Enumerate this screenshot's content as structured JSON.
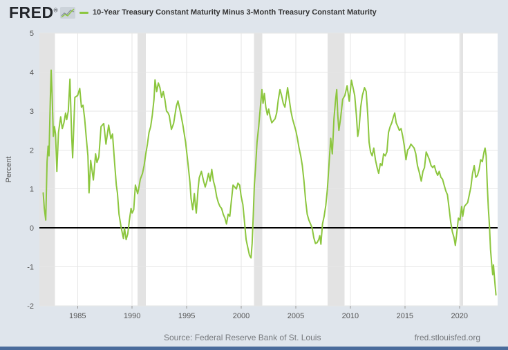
{
  "header": {
    "logo_text": "FRED",
    "registered_mark": "®",
    "legend_label": "10-Year Treasury Constant Maturity Minus 3-Month Treasury Constant Maturity"
  },
  "footer": {
    "source": "Source: Federal Reserve Bank of St. Louis",
    "link": "fred.stlouisfed.org"
  },
  "colors": {
    "background": "#dfe5ec",
    "plot_bg": "#ffffff",
    "grid": "#e6e6e6",
    "recession_band": "#e3e3e3",
    "series": "#8cc63e",
    "zero_line": "#000000",
    "axis_text": "#555555",
    "tick_mark": "#999999",
    "legend_text": "#333333",
    "footer_text": "#76797d",
    "bottom_bar": "#4a6b9b",
    "logo_text": "#23262b"
  },
  "chart_data": {
    "type": "line",
    "title": "10-Year Treasury Constant Maturity Minus 3-Month Treasury Constant Maturity",
    "ylabel": "Percent",
    "xlabel": "",
    "xlim": [
      1981.5,
      2023.5
    ],
    "ylim": [
      -2,
      5
    ],
    "x_ticks": [
      1985,
      1990,
      1995,
      2000,
      2005,
      2010,
      2015,
      2020
    ],
    "y_ticks": [
      -2,
      -1,
      0,
      1,
      2,
      3,
      4,
      5
    ],
    "grid": true,
    "legend_position": "top",
    "zero_line": 0,
    "recessions": [
      [
        1981.5,
        1982.92
      ],
      [
        1990.5,
        1991.25
      ],
      [
        2001.17,
        2001.92
      ],
      [
        2007.92,
        2009.45
      ],
      [
        2020.08,
        2020.33
      ]
    ],
    "series": [
      {
        "name": "10-Year Treasury Constant Maturity Minus 3-Month Treasury Constant Maturity",
        "points": [
          [
            1981.85,
            0.9
          ],
          [
            1981.95,
            0.5
          ],
          [
            1982.08,
            0.2
          ],
          [
            1982.2,
            1.7
          ],
          [
            1982.3,
            2.1
          ],
          [
            1982.38,
            1.85
          ],
          [
            1982.5,
            3.3
          ],
          [
            1982.58,
            4.05
          ],
          [
            1982.68,
            3.3
          ],
          [
            1982.78,
            2.35
          ],
          [
            1982.88,
            2.6
          ],
          [
            1982.98,
            2.4
          ],
          [
            1983.1,
            1.45
          ],
          [
            1983.25,
            2.45
          ],
          [
            1983.45,
            2.85
          ],
          [
            1983.6,
            2.55
          ],
          [
            1983.75,
            2.7
          ],
          [
            1983.9,
            2.95
          ],
          [
            1984.0,
            2.78
          ],
          [
            1984.15,
            3.0
          ],
          [
            1984.3,
            3.82
          ],
          [
            1984.45,
            2.4
          ],
          [
            1984.55,
            1.8
          ],
          [
            1984.75,
            3.35
          ],
          [
            1985.0,
            3.4
          ],
          [
            1985.2,
            3.58
          ],
          [
            1985.35,
            3.1
          ],
          [
            1985.5,
            3.15
          ],
          [
            1985.65,
            2.8
          ],
          [
            1985.8,
            2.3
          ],
          [
            1985.95,
            1.85
          ],
          [
            1986.05,
            0.9
          ],
          [
            1986.2,
            1.73
          ],
          [
            1986.45,
            1.23
          ],
          [
            1986.65,
            1.9
          ],
          [
            1986.78,
            1.68
          ],
          [
            1986.95,
            1.82
          ],
          [
            1987.15,
            2.6
          ],
          [
            1987.4,
            2.68
          ],
          [
            1987.6,
            2.15
          ],
          [
            1987.85,
            2.64
          ],
          [
            1988.05,
            2.29
          ],
          [
            1988.2,
            2.41
          ],
          [
            1988.4,
            1.65
          ],
          [
            1988.55,
            1.1
          ],
          [
            1988.65,
            0.9
          ],
          [
            1988.8,
            0.35
          ],
          [
            1989.0,
            0.0
          ],
          [
            1989.2,
            -0.27
          ],
          [
            1989.3,
            0.0
          ],
          [
            1989.45,
            -0.3
          ],
          [
            1989.6,
            -0.15
          ],
          [
            1989.75,
            0.2
          ],
          [
            1989.9,
            0.5
          ],
          [
            1990.0,
            0.38
          ],
          [
            1990.15,
            0.47
          ],
          [
            1990.3,
            1.1
          ],
          [
            1990.5,
            0.88
          ],
          [
            1990.6,
            1.0
          ],
          [
            1990.75,
            1.25
          ],
          [
            1990.95,
            1.4
          ],
          [
            1991.1,
            1.6
          ],
          [
            1991.25,
            1.9
          ],
          [
            1991.4,
            2.15
          ],
          [
            1991.55,
            2.45
          ],
          [
            1991.7,
            2.6
          ],
          [
            1991.85,
            2.9
          ],
          [
            1992.0,
            3.3
          ],
          [
            1992.1,
            3.8
          ],
          [
            1992.25,
            3.5
          ],
          [
            1992.4,
            3.72
          ],
          [
            1992.55,
            3.6
          ],
          [
            1992.7,
            3.35
          ],
          [
            1992.85,
            3.5
          ],
          [
            1993.0,
            3.3
          ],
          [
            1993.15,
            3.0
          ],
          [
            1993.3,
            2.95
          ],
          [
            1993.4,
            2.88
          ],
          [
            1993.6,
            2.53
          ],
          [
            1993.8,
            2.68
          ],
          [
            1994.05,
            3.12
          ],
          [
            1994.2,
            3.26
          ],
          [
            1994.45,
            2.94
          ],
          [
            1994.65,
            2.64
          ],
          [
            1994.9,
            2.2
          ],
          [
            1995.1,
            1.7
          ],
          [
            1995.3,
            1.17
          ],
          [
            1995.4,
            0.76
          ],
          [
            1995.55,
            0.47
          ],
          [
            1995.7,
            0.88
          ],
          [
            1995.8,
            0.58
          ],
          [
            1995.88,
            0.38
          ],
          [
            1996.05,
            1.02
          ],
          [
            1996.15,
            1.29
          ],
          [
            1996.35,
            1.45
          ],
          [
            1996.55,
            1.2
          ],
          [
            1996.7,
            1.05
          ],
          [
            1996.85,
            1.2
          ],
          [
            1997.0,
            1.4
          ],
          [
            1997.15,
            1.2
          ],
          [
            1997.3,
            1.5
          ],
          [
            1997.45,
            1.2
          ],
          [
            1997.6,
            1.05
          ],
          [
            1997.75,
            0.8
          ],
          [
            1997.9,
            0.65
          ],
          [
            1998.05,
            0.55
          ],
          [
            1998.2,
            0.5
          ],
          [
            1998.35,
            0.35
          ],
          [
            1998.5,
            0.25
          ],
          [
            1998.65,
            0.1
          ],
          [
            1998.8,
            0.35
          ],
          [
            1998.95,
            0.3
          ],
          [
            1999.1,
            0.7
          ],
          [
            1999.25,
            1.1
          ],
          [
            1999.4,
            1.05
          ],
          [
            1999.55,
            1.0
          ],
          [
            1999.7,
            1.15
          ],
          [
            1999.85,
            1.1
          ],
          [
            2000.0,
            0.8
          ],
          [
            2000.15,
            0.6
          ],
          [
            2000.3,
            0.15
          ],
          [
            2000.45,
            -0.3
          ],
          [
            2000.6,
            -0.5
          ],
          [
            2000.75,
            -0.7
          ],
          [
            2000.9,
            -0.77
          ],
          [
            2001.0,
            -0.4
          ],
          [
            2001.1,
            0.3
          ],
          [
            2001.2,
            1.1
          ],
          [
            2001.3,
            1.5
          ],
          [
            2001.45,
            2.2
          ],
          [
            2001.6,
            2.6
          ],
          [
            2001.75,
            3.1
          ],
          [
            2001.9,
            3.55
          ],
          [
            2002.0,
            3.2
          ],
          [
            2002.12,
            3.45
          ],
          [
            2002.25,
            3.1
          ],
          [
            2002.4,
            2.9
          ],
          [
            2002.52,
            3.05
          ],
          [
            2002.65,
            2.85
          ],
          [
            2002.8,
            2.7
          ],
          [
            2002.95,
            2.75
          ],
          [
            2003.1,
            2.8
          ],
          [
            2003.25,
            2.95
          ],
          [
            2003.4,
            3.3
          ],
          [
            2003.55,
            3.55
          ],
          [
            2003.7,
            3.4
          ],
          [
            2003.85,
            3.2
          ],
          [
            2004.0,
            3.1
          ],
          [
            2004.1,
            3.3
          ],
          [
            2004.25,
            3.6
          ],
          [
            2004.4,
            3.3
          ],
          [
            2004.55,
            3.0
          ],
          [
            2004.7,
            2.8
          ],
          [
            2004.85,
            2.65
          ],
          [
            2005.0,
            2.5
          ],
          [
            2005.15,
            2.3
          ],
          [
            2005.3,
            2.05
          ],
          [
            2005.45,
            1.85
          ],
          [
            2005.6,
            1.6
          ],
          [
            2005.75,
            1.2
          ],
          [
            2005.9,
            0.7
          ],
          [
            2006.05,
            0.35
          ],
          [
            2006.2,
            0.2
          ],
          [
            2006.35,
            0.1
          ],
          [
            2006.5,
            0.0
          ],
          [
            2006.65,
            -0.25
          ],
          [
            2006.8,
            -0.4
          ],
          [
            2006.95,
            -0.38
          ],
          [
            2007.1,
            -0.3
          ],
          [
            2007.2,
            -0.2
          ],
          [
            2007.3,
            -0.42
          ],
          [
            2007.45,
            0.1
          ],
          [
            2007.6,
            0.3
          ],
          [
            2007.75,
            0.58
          ],
          [
            2007.9,
            1.0
          ],
          [
            2008.05,
            1.65
          ],
          [
            2008.2,
            2.3
          ],
          [
            2008.35,
            1.9
          ],
          [
            2008.5,
            2.8
          ],
          [
            2008.65,
            3.3
          ],
          [
            2008.75,
            3.55
          ],
          [
            2008.85,
            2.9
          ],
          [
            2008.95,
            2.5
          ],
          [
            2009.1,
            2.8
          ],
          [
            2009.3,
            3.3
          ],
          [
            2009.5,
            3.4
          ],
          [
            2009.7,
            3.65
          ],
          [
            2009.9,
            3.25
          ],
          [
            2010.1,
            3.79
          ],
          [
            2010.25,
            3.6
          ],
          [
            2010.4,
            3.4
          ],
          [
            2010.55,
            2.9
          ],
          [
            2010.68,
            2.35
          ],
          [
            2010.8,
            2.55
          ],
          [
            2010.95,
            3.1
          ],
          [
            2011.1,
            3.4
          ],
          [
            2011.3,
            3.6
          ],
          [
            2011.45,
            3.5
          ],
          [
            2011.6,
            2.9
          ],
          [
            2011.72,
            2.2
          ],
          [
            2011.85,
            1.95
          ],
          [
            2012.0,
            1.85
          ],
          [
            2012.15,
            2.05
          ],
          [
            2012.3,
            1.75
          ],
          [
            2012.45,
            1.55
          ],
          [
            2012.6,
            1.4
          ],
          [
            2012.75,
            1.65
          ],
          [
            2012.9,
            1.6
          ],
          [
            2013.05,
            1.9
          ],
          [
            2013.2,
            1.85
          ],
          [
            2013.35,
            1.95
          ],
          [
            2013.5,
            2.45
          ],
          [
            2013.65,
            2.6
          ],
          [
            2013.8,
            2.7
          ],
          [
            2013.95,
            2.85
          ],
          [
            2014.07,
            2.95
          ],
          [
            2014.2,
            2.7
          ],
          [
            2014.35,
            2.6
          ],
          [
            2014.5,
            2.5
          ],
          [
            2014.65,
            2.55
          ],
          [
            2014.8,
            2.35
          ],
          [
            2014.95,
            2.1
          ],
          [
            2015.1,
            1.75
          ],
          [
            2015.25,
            2.0
          ],
          [
            2015.4,
            2.05
          ],
          [
            2015.55,
            2.15
          ],
          [
            2015.7,
            2.1
          ],
          [
            2015.85,
            2.05
          ],
          [
            2016.0,
            1.9
          ],
          [
            2016.15,
            1.6
          ],
          [
            2016.3,
            1.45
          ],
          [
            2016.5,
            1.2
          ],
          [
            2016.65,
            1.45
          ],
          [
            2016.8,
            1.55
          ],
          [
            2016.95,
            1.95
          ],
          [
            2017.1,
            1.85
          ],
          [
            2017.25,
            1.75
          ],
          [
            2017.4,
            1.6
          ],
          [
            2017.55,
            1.55
          ],
          [
            2017.7,
            1.6
          ],
          [
            2017.85,
            1.45
          ],
          [
            2018.0,
            1.35
          ],
          [
            2018.15,
            1.45
          ],
          [
            2018.3,
            1.3
          ],
          [
            2018.45,
            1.25
          ],
          [
            2018.6,
            1.1
          ],
          [
            2018.75,
            0.95
          ],
          [
            2018.9,
            0.85
          ],
          [
            2019.05,
            0.5
          ],
          [
            2019.2,
            0.15
          ],
          [
            2019.35,
            -0.1
          ],
          [
            2019.5,
            -0.25
          ],
          [
            2019.62,
            -0.45
          ],
          [
            2019.75,
            -0.15
          ],
          [
            2019.9,
            0.25
          ],
          [
            2020.05,
            0.2
          ],
          [
            2020.2,
            0.55
          ],
          [
            2020.3,
            0.3
          ],
          [
            2020.45,
            0.55
          ],
          [
            2020.6,
            0.6
          ],
          [
            2020.75,
            0.65
          ],
          [
            2020.9,
            0.85
          ],
          [
            2021.05,
            1.05
          ],
          [
            2021.2,
            1.4
          ],
          [
            2021.35,
            1.6
          ],
          [
            2021.5,
            1.3
          ],
          [
            2021.65,
            1.35
          ],
          [
            2021.8,
            1.5
          ],
          [
            2021.95,
            1.75
          ],
          [
            2022.1,
            1.7
          ],
          [
            2022.25,
            1.95
          ],
          [
            2022.35,
            2.05
          ],
          [
            2022.45,
            1.85
          ],
          [
            2022.55,
            1.1
          ],
          [
            2022.65,
            0.5
          ],
          [
            2022.75,
            0.05
          ],
          [
            2022.85,
            -0.55
          ],
          [
            2022.95,
            -0.9
          ],
          [
            2023.05,
            -1.2
          ],
          [
            2023.12,
            -0.95
          ],
          [
            2023.2,
            -1.25
          ],
          [
            2023.28,
            -1.5
          ],
          [
            2023.35,
            -1.72
          ]
        ]
      }
    ]
  }
}
